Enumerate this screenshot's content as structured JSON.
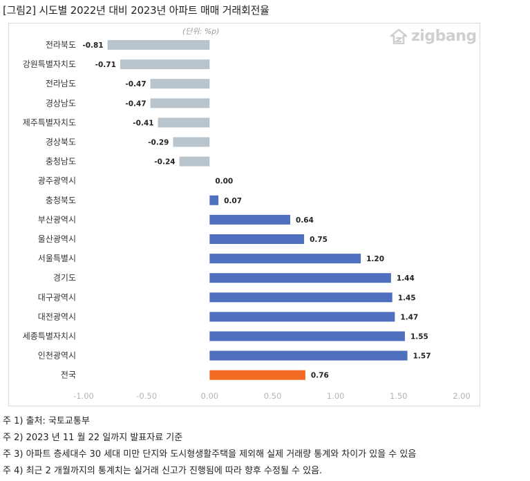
{
  "title": "[그림2] 시도별 2022년 대비 2023년 아파트 매매 거래회전율",
  "unit_note": "(단위: %p)",
  "logo_text": "zigbang",
  "notes": [
    "주 1) 출처: 국토교통부",
    "주 2) 2023 년 11 월 22 일까지 발표자료 기준",
    "주 3) 아파트 층세대수 30 세대 미만 단지와 도시형생활주택을 제외해 실제 거래량 통계와 차이가 있을 수 있음",
    "주 4) 최근 2 개월까지의 통계치는 실거래 신고가 진행됨에 따라 향후 수정될 수 있음."
  ],
  "chart_data": {
    "type": "bar",
    "orientation": "horizontal",
    "categories": [
      "전라북도",
      "강원특별자치도",
      "전라남도",
      "경상남도",
      "제주특별자치도",
      "경상북도",
      "충청남도",
      "광주광역시",
      "충청북도",
      "부산광역시",
      "울산광역시",
      "서울특별시",
      "경기도",
      "대구광역시",
      "대전광역시",
      "세종특별자치시",
      "인천광역시",
      "전국"
    ],
    "values": [
      -0.81,
      -0.71,
      -0.47,
      -0.47,
      -0.41,
      -0.29,
      -0.24,
      0.0,
      0.07,
      0.64,
      0.75,
      1.2,
      1.44,
      1.45,
      1.47,
      1.55,
      1.57,
      0.76
    ],
    "value_labels": [
      "-0.81",
      "-0.71",
      "-0.47",
      "-0.47",
      "-0.41",
      "-0.29",
      "-0.24",
      "0.00",
      "0.07",
      "0.64",
      "0.75",
      "1.20",
      "1.44",
      "1.45",
      "1.47",
      "1.55",
      "1.57",
      "0.76"
    ],
    "xlim": [
      -1.0,
      2.0
    ],
    "x_ticks": [
      -1.0,
      -0.5,
      0.0,
      0.5,
      1.0,
      1.5,
      2.0
    ],
    "x_tick_labels": [
      "-1.00",
      "-0.50",
      "0.00",
      "0.50",
      "1.00",
      "1.50",
      "2.00"
    ],
    "grid": false,
    "legend": "none",
    "colors": {
      "negative": "#b9c4cc",
      "positive": "#4f6fbf",
      "highlight": "#f26a21",
      "axis_label": "#b3b3b3",
      "logo": "#cfcfcf"
    }
  }
}
